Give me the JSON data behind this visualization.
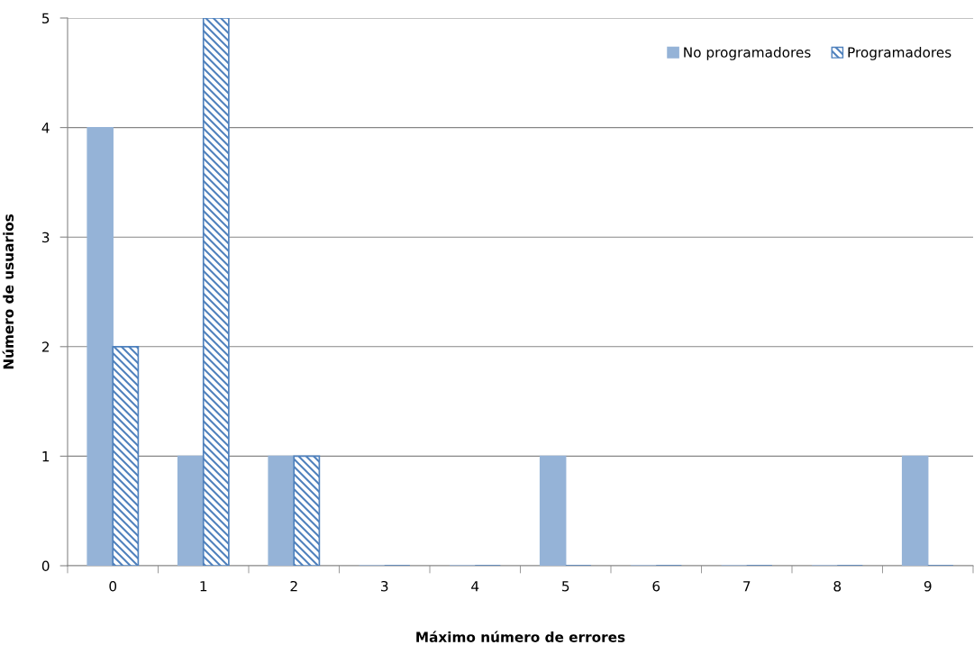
{
  "chart_data": {
    "type": "bar",
    "xlabel": "Máximo número de errores",
    "ylabel": "Número de usuarios",
    "categories": [
      "0",
      "1",
      "2",
      "3",
      "4",
      "5",
      "6",
      "7",
      "8",
      "9"
    ],
    "series": [
      {
        "name": "No programadores",
        "color": "#95b3d7",
        "values": [
          4,
          1,
          1,
          0,
          0,
          1,
          0,
          0,
          0,
          1
        ]
      },
      {
        "name": "Programadores",
        "color": "#4f81bd",
        "values": [
          2,
          5,
          1,
          0,
          0,
          0,
          0,
          0,
          0,
          0
        ]
      }
    ],
    "ylim": [
      0,
      5
    ],
    "yticks": [
      0,
      1,
      2,
      3,
      4,
      5
    ],
    "grid": "y",
    "legend": "top right"
  }
}
